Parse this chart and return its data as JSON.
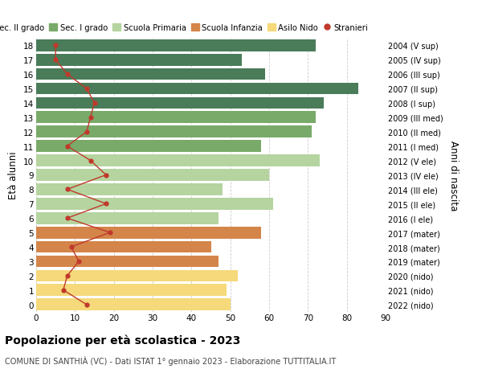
{
  "ages": [
    18,
    17,
    16,
    15,
    14,
    13,
    12,
    11,
    10,
    9,
    8,
    7,
    6,
    5,
    4,
    3,
    2,
    1,
    0
  ],
  "anni_nascita": [
    "2004 (V sup)",
    "2005 (IV sup)",
    "2006 (III sup)",
    "2007 (II sup)",
    "2008 (I sup)",
    "2009 (III med)",
    "2010 (II med)",
    "2011 (I med)",
    "2012 (V ele)",
    "2013 (IV ele)",
    "2014 (III ele)",
    "2015 (II ele)",
    "2016 (I ele)",
    "2017 (mater)",
    "2018 (mater)",
    "2019 (mater)",
    "2020 (nido)",
    "2021 (nido)",
    "2022 (nido)"
  ],
  "bar_values": [
    72,
    53,
    59,
    83,
    74,
    72,
    71,
    58,
    73,
    60,
    48,
    61,
    47,
    58,
    45,
    47,
    52,
    49,
    50
  ],
  "stranieri": [
    5,
    5,
    8,
    13,
    15,
    14,
    13,
    8,
    14,
    18,
    8,
    18,
    8,
    19,
    9,
    11,
    8,
    7,
    13
  ],
  "bar_colors": [
    "#4a7c59",
    "#4a7c59",
    "#4a7c59",
    "#4a7c59",
    "#4a7c59",
    "#7aaa6a",
    "#7aaa6a",
    "#7aaa6a",
    "#b5d4a0",
    "#b5d4a0",
    "#b5d4a0",
    "#b5d4a0",
    "#b5d4a0",
    "#d4854a",
    "#d4854a",
    "#d4854a",
    "#f5d97a",
    "#f5d97a",
    "#f5d97a"
  ],
  "legend_labels": [
    "Sec. II grado",
    "Sec. I grado",
    "Scuola Primaria",
    "Scuola Infanzia",
    "Asilo Nido",
    "Stranieri"
  ],
  "legend_colors": [
    "#4a7c59",
    "#7aaa6a",
    "#b5d4a0",
    "#d4854a",
    "#f5d97a",
    "#c0392b"
  ],
  "ylabel_left": "Età alunni",
  "ylabel_right": "Anni di nascita",
  "title": "Popolazione per età scolastica - 2023",
  "subtitle": "COMUNE DI SANTHIÀ (VC) - Dati ISTAT 1° gennaio 2023 - Elaborazione TUTTITALIA.IT",
  "xlim": [
    0,
    90
  ],
  "xticks": [
    0,
    10,
    20,
    30,
    40,
    50,
    60,
    70,
    80,
    90
  ],
  "stranieri_color": "#c0392b",
  "bg_color": "#ffffff",
  "grid_color": "#cccccc"
}
